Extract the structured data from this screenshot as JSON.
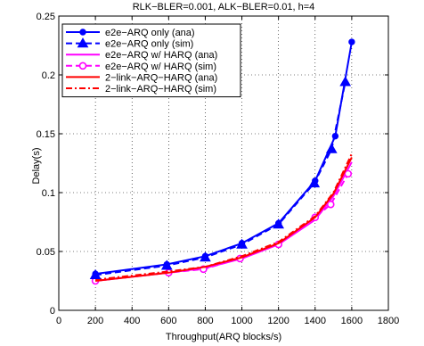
{
  "chart_data": {
    "type": "line",
    "title": "RLK−BLER=0.001, ALK−BLER=0.01, h=4",
    "xlabel": "Throughput(ARQ blocks/s)",
    "ylabel": "Delay(s)",
    "xlim": [
      0,
      1800
    ],
    "ylim": [
      0,
      0.25
    ],
    "xticks": [
      "0",
      "200",
      "400",
      "600",
      "800",
      "1000",
      "1200",
      "1400",
      "1600",
      "1800"
    ],
    "yticks": [
      "0",
      "0.05",
      "0.1",
      "0.15",
      "0.2",
      "0.25"
    ],
    "grid": true,
    "legend_position": "top-left",
    "series": [
      {
        "name": "e2e−ARQ only (ana)",
        "color": "#0000ff",
        "line": "solid",
        "marker": "circle-filled",
        "x": [
          200,
          590,
          800,
          1000,
          1200,
          1400,
          1510,
          1600
        ],
        "y": [
          0.031,
          0.039,
          0.046,
          0.057,
          0.074,
          0.11,
          0.148,
          0.228
        ]
      },
      {
        "name": "e2e−ARQ only (sim)",
        "color": "#0000ff",
        "line": "dashed",
        "marker": "triangle-filled",
        "x": [
          200,
          590,
          800,
          1000,
          1200,
          1395,
          1490,
          1565
        ],
        "y": [
          0.03,
          0.038,
          0.045,
          0.056,
          0.073,
          0.108,
          0.137,
          0.194
        ]
      },
      {
        "name": "e2e−ARQ w/ HARQ (ana)",
        "color": "#ff00ff",
        "line": "solid",
        "marker": "none",
        "x": [
          200,
          600,
          800,
          1000,
          1200,
          1400,
          1500,
          1600
        ],
        "y": [
          0.025,
          0.032,
          0.036,
          0.044,
          0.056,
          0.077,
          0.097,
          0.126
        ]
      },
      {
        "name": "e2e−ARQ w/ HARQ (sim)",
        "color": "#ff00ff",
        "line": "dashed",
        "marker": "circle-open",
        "x": [
          200,
          600,
          790,
          990,
          1200,
          1400,
          1485,
          1580
        ],
        "y": [
          0.025,
          0.032,
          0.035,
          0.044,
          0.056,
          0.079,
          0.09,
          0.116
        ]
      },
      {
        "name": "2−link−ARQ−HARQ (ana)",
        "color": "#ff0000",
        "line": "solid",
        "marker": "none",
        "x": [
          200,
          600,
          800,
          1000,
          1200,
          1400,
          1500,
          1600
        ],
        "y": [
          0.025,
          0.032,
          0.037,
          0.045,
          0.057,
          0.079,
          0.099,
          0.13
        ]
      },
      {
        "name": "2−link−ARQ−HARQ (sim)",
        "color": "#ff0000",
        "line": "dashdot",
        "marker": "none",
        "x": [
          200,
          600,
          800,
          1000,
          1200,
          1400,
          1500,
          1600
        ],
        "y": [
          0.026,
          0.033,
          0.037,
          0.046,
          0.058,
          0.08,
          0.1,
          0.133
        ]
      }
    ]
  }
}
